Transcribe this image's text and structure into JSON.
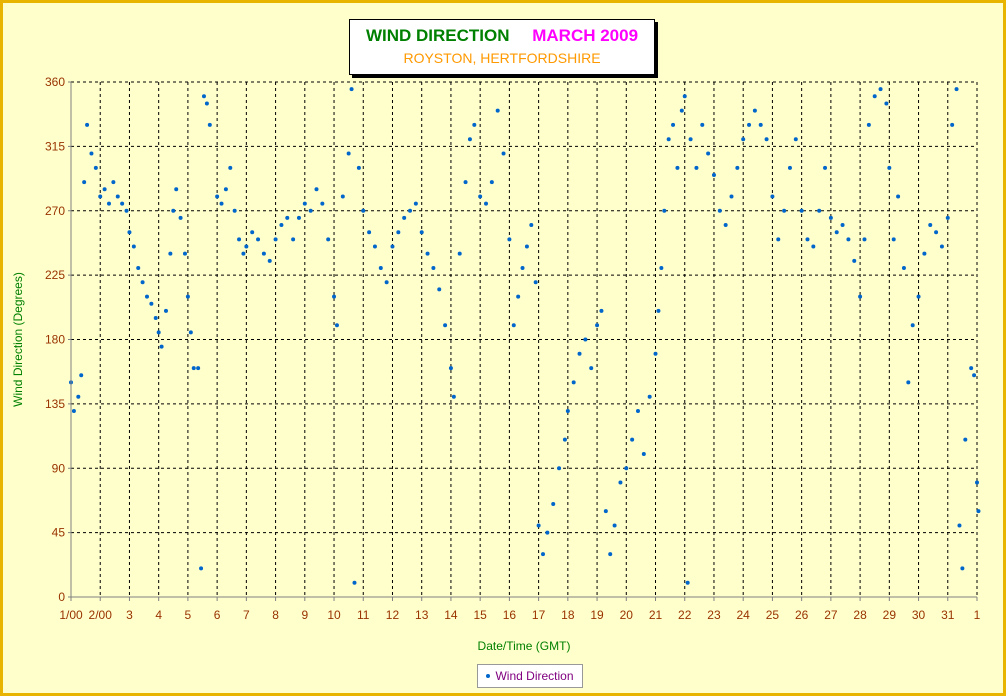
{
  "chart_data": {
    "type": "scatter",
    "title": "WIND DIRECTION",
    "title_date": "MARCH 2009",
    "subtitle": "ROYSTON, HERTFORDSHIRE",
    "xlabel": "Date/Time (GMT)",
    "ylabel": "Wind Direction (Degrees)",
    "ylim": [
      0,
      360
    ],
    "xlim": [
      1,
      32
    ],
    "y_ticks": [
      "0",
      "45",
      "90",
      "135",
      "180",
      "225",
      "270",
      "315",
      "360"
    ],
    "x_ticks": [
      "1/00",
      "2/00",
      "3",
      "4",
      "5",
      "6",
      "7",
      "8",
      "9",
      "10",
      "11",
      "12",
      "13",
      "14",
      "15",
      "16",
      "17",
      "18",
      "19",
      "20",
      "21",
      "22",
      "23",
      "24",
      "25",
      "26",
      "27",
      "28",
      "29",
      "30",
      "31",
      "1"
    ],
    "grid": true,
    "legend_position": "bottom",
    "series": [
      {
        "name": "Wind Direction",
        "color": "#0066cc",
        "points": [
          [
            1.0,
            150
          ],
          [
            1.1,
            130
          ],
          [
            1.25,
            140
          ],
          [
            1.35,
            155
          ],
          [
            1.45,
            290
          ],
          [
            1.55,
            330
          ],
          [
            1.7,
            310
          ],
          [
            1.85,
            300
          ],
          [
            2.0,
            280
          ],
          [
            2.15,
            285
          ],
          [
            2.3,
            275
          ],
          [
            2.45,
            290
          ],
          [
            2.6,
            280
          ],
          [
            2.75,
            275
          ],
          [
            2.9,
            270
          ],
          [
            3.0,
            255
          ],
          [
            3.15,
            245
          ],
          [
            3.3,
            230
          ],
          [
            3.45,
            220
          ],
          [
            3.6,
            210
          ],
          [
            3.75,
            205
          ],
          [
            3.9,
            195
          ],
          [
            4.0,
            185
          ],
          [
            4.1,
            175
          ],
          [
            4.25,
            200
          ],
          [
            4.4,
            240
          ],
          [
            4.5,
            270
          ],
          [
            4.6,
            285
          ],
          [
            4.75,
            265
          ],
          [
            4.9,
            240
          ],
          [
            5.0,
            210
          ],
          [
            5.1,
            185
          ],
          [
            5.2,
            160
          ],
          [
            5.35,
            160
          ],
          [
            5.45,
            20
          ],
          [
            5.55,
            350
          ],
          [
            5.65,
            345
          ],
          [
            5.75,
            330
          ],
          [
            6.0,
            280
          ],
          [
            6.15,
            275
          ],
          [
            6.3,
            285
          ],
          [
            6.45,
            300
          ],
          [
            6.6,
            270
          ],
          [
            6.75,
            250
          ],
          [
            6.9,
            240
          ],
          [
            7.0,
            245
          ],
          [
            7.2,
            255
          ],
          [
            7.4,
            250
          ],
          [
            7.6,
            240
          ],
          [
            7.8,
            235
          ],
          [
            8.0,
            250
          ],
          [
            8.2,
            260
          ],
          [
            8.4,
            265
          ],
          [
            8.6,
            250
          ],
          [
            8.8,
            265
          ],
          [
            9.0,
            275
          ],
          [
            9.2,
            270
          ],
          [
            9.4,
            285
          ],
          [
            9.6,
            275
          ],
          [
            9.8,
            250
          ],
          [
            10.0,
            210
          ],
          [
            10.1,
            190
          ],
          [
            10.3,
            280
          ],
          [
            10.5,
            310
          ],
          [
            10.6,
            355
          ],
          [
            10.7,
            10
          ],
          [
            10.85,
            300
          ],
          [
            11.0,
            270
          ],
          [
            11.2,
            255
          ],
          [
            11.4,
            245
          ],
          [
            11.6,
            230
          ],
          [
            11.8,
            220
          ],
          [
            12.0,
            245
          ],
          [
            12.2,
            255
          ],
          [
            12.4,
            265
          ],
          [
            12.6,
            270
          ],
          [
            12.8,
            275
          ],
          [
            13.0,
            255
          ],
          [
            13.2,
            240
          ],
          [
            13.4,
            230
          ],
          [
            13.6,
            215
          ],
          [
            13.8,
            190
          ],
          [
            14.0,
            160
          ],
          [
            14.1,
            140
          ],
          [
            14.3,
            240
          ],
          [
            14.5,
            290
          ],
          [
            14.65,
            320
          ],
          [
            14.8,
            330
          ],
          [
            15.0,
            280
          ],
          [
            15.2,
            275
          ],
          [
            15.4,
            290
          ],
          [
            15.6,
            340
          ],
          [
            15.8,
            310
          ],
          [
            16.0,
            250
          ],
          [
            16.15,
            190
          ],
          [
            16.3,
            210
          ],
          [
            16.45,
            230
          ],
          [
            16.6,
            245
          ],
          [
            16.75,
            260
          ],
          [
            16.9,
            220
          ],
          [
            17.0,
            50
          ],
          [
            17.15,
            30
          ],
          [
            17.3,
            45
          ],
          [
            17.5,
            65
          ],
          [
            17.7,
            90
          ],
          [
            17.9,
            110
          ],
          [
            18.0,
            130
          ],
          [
            18.2,
            150
          ],
          [
            18.4,
            170
          ],
          [
            18.6,
            180
          ],
          [
            18.8,
            160
          ],
          [
            19.0,
            190
          ],
          [
            19.15,
            200
          ],
          [
            19.3,
            60
          ],
          [
            19.45,
            30
          ],
          [
            19.6,
            50
          ],
          [
            19.8,
            80
          ],
          [
            20.0,
            90
          ],
          [
            20.2,
            110
          ],
          [
            20.4,
            130
          ],
          [
            20.6,
            100
          ],
          [
            20.8,
            140
          ],
          [
            21.0,
            170
          ],
          [
            21.1,
            200
          ],
          [
            21.2,
            230
          ],
          [
            21.3,
            270
          ],
          [
            21.45,
            320
          ],
          [
            21.6,
            330
          ],
          [
            21.75,
            300
          ],
          [
            21.9,
            340
          ],
          [
            22.0,
            350
          ],
          [
            22.1,
            10
          ],
          [
            22.2,
            320
          ],
          [
            22.4,
            300
          ],
          [
            22.6,
            330
          ],
          [
            22.8,
            310
          ],
          [
            23.0,
            295
          ],
          [
            23.2,
            270
          ],
          [
            23.4,
            260
          ],
          [
            23.6,
            280
          ],
          [
            23.8,
            300
          ],
          [
            24.0,
            320
          ],
          [
            24.2,
            330
          ],
          [
            24.4,
            340
          ],
          [
            24.6,
            330
          ],
          [
            24.8,
            320
          ],
          [
            25.0,
            280
          ],
          [
            25.2,
            250
          ],
          [
            25.4,
            270
          ],
          [
            25.6,
            300
          ],
          [
            25.8,
            320
          ],
          [
            26.0,
            270
          ],
          [
            26.2,
            250
          ],
          [
            26.4,
            245
          ],
          [
            26.6,
            270
          ],
          [
            26.8,
            300
          ],
          [
            27.0,
            265
          ],
          [
            27.2,
            255
          ],
          [
            27.4,
            260
          ],
          [
            27.6,
            250
          ],
          [
            27.8,
            235
          ],
          [
            28.0,
            210
          ],
          [
            28.15,
            250
          ],
          [
            28.3,
            330
          ],
          [
            28.5,
            350
          ],
          [
            28.7,
            355
          ],
          [
            28.9,
            345
          ],
          [
            29.0,
            300
          ],
          [
            29.15,
            250
          ],
          [
            29.3,
            280
          ],
          [
            29.5,
            230
          ],
          [
            29.65,
            150
          ],
          [
            29.8,
            190
          ],
          [
            30.0,
            210
          ],
          [
            30.2,
            240
          ],
          [
            30.4,
            260
          ],
          [
            30.6,
            255
          ],
          [
            30.8,
            245
          ],
          [
            31.0,
            265
          ],
          [
            31.15,
            330
          ],
          [
            31.3,
            355
          ],
          [
            31.4,
            50
          ],
          [
            31.5,
            20
          ],
          [
            31.6,
            110
          ],
          [
            31.8,
            160
          ],
          [
            31.9,
            155
          ],
          [
            32.0,
            80
          ],
          [
            32.05,
            60
          ]
        ]
      }
    ]
  }
}
